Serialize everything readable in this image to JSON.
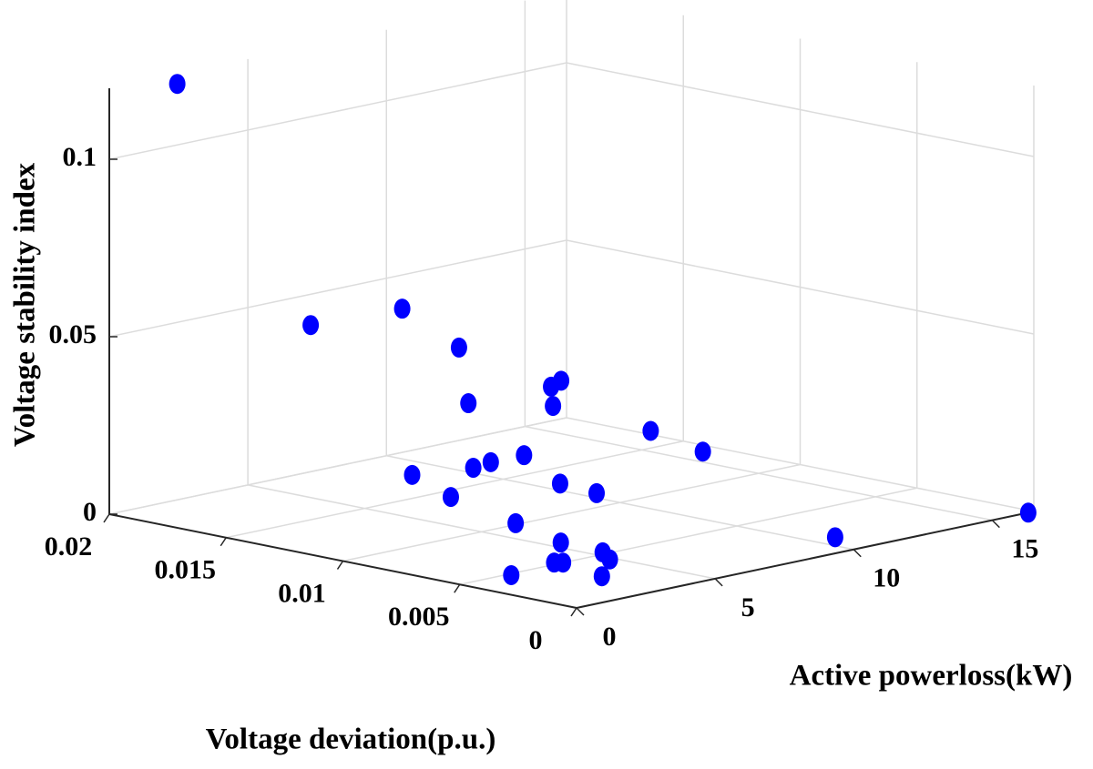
{
  "chart_data": {
    "type": "scatter3d",
    "xlabel": "Voltage deviation(p.u.)",
    "ylabel": "Active powerloss(kW)",
    "zlabel": "Voltage stability index",
    "color": "#0000ff",
    "grid": true,
    "xlim": [
      0,
      0.02
    ],
    "ylim": [
      0,
      16.5
    ],
    "zlim": [
      0,
      0.12
    ],
    "xticks": [
      0,
      0.005,
      0.01,
      0.015,
      0.02
    ],
    "yticks": [
      0,
      5,
      10,
      15
    ],
    "zticks": [
      0,
      0.05,
      0.1
    ],
    "x": [
      0.0197,
      0.0131,
      0.0128,
      0.0112,
      0.0089,
      0.0088,
      0.0092,
      0.0086,
      0.0094,
      0.0061,
      0.0,
      0.0002,
      0.0119,
      0.0106,
      0.0113,
      0.0115,
      0.0115,
      0.0096,
      0.0078,
      0.0083,
      0.0053,
      0.0041,
      0.0039,
      0.0041,
      0.0032,
      0.002,
      0.0041
    ],
    "y": [
      2.2,
      1.45,
      4.5,
      5.2,
      3.6,
      6.5,
      7.2,
      6.4,
      10.6,
      9.7,
      16.3,
      9.5,
      4.1,
      4.4,
      5.8,
      6.6,
      7.8,
      7.5,
      7.3,
      4.8,
      3.9,
      2.65,
      2.8,
      4.4,
      3.9,
      2.6,
      1.1
    ],
    "z": [
      0.118,
      0.06,
      0.06,
      0.05,
      0.04,
      0.04,
      0.04,
      0.035,
      0.02,
      0.02,
      0.0,
      0.004,
      0.015,
      0.01,
      0.015,
      0.015,
      0.015,
      0.01,
      0.01,
      0.005,
      0.005,
      0.003,
      0.003,
      0.003,
      0.003,
      0.002,
      0.002
    ]
  }
}
